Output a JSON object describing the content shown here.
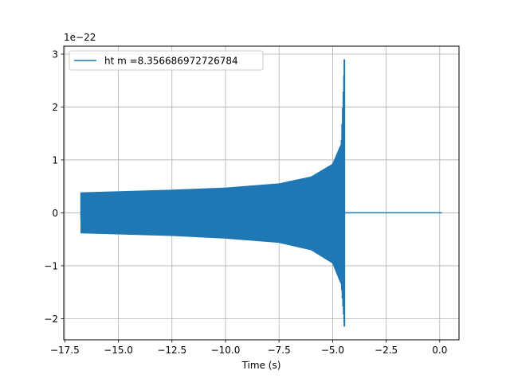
{
  "chart_data": {
    "type": "line",
    "title": "",
    "xlabel": "Time (s)",
    "ylabel": "",
    "y_offset_label": "1e−22",
    "xlim": [
      -17.55,
      0.9
    ],
    "ylim": [
      -2.4,
      3.15
    ],
    "x_ticks": [
      -17.5,
      -15.0,
      -12.5,
      -10.0,
      -7.5,
      -5.0,
      -2.5,
      0.0
    ],
    "x_tick_labels": [
      "−17.5",
      "−15.0",
      "−12.5",
      "−10.0",
      "−7.5",
      "−5.0",
      "−2.5",
      "0.0"
    ],
    "y_ticks": [
      -2,
      -1,
      0,
      1,
      2,
      3
    ],
    "y_tick_labels": [
      "−2",
      "−1",
      "0",
      "1",
      "2",
      "3"
    ],
    "grid": true,
    "legend_position": "top-left",
    "color": "#1f77b4",
    "series": [
      {
        "name": "ht m =8.356686972726784",
        "description_points": {
          "x_start": -16.75,
          "x_merger": -4.45,
          "x_end": 0.1,
          "upper_envelope": [
            [
              -16.75,
              0.38
            ],
            [
              -12.5,
              0.43
            ],
            [
              -10.0,
              0.47
            ],
            [
              -7.5,
              0.55
            ],
            [
              -6.0,
              0.68
            ],
            [
              -5.0,
              0.92
            ],
            [
              -4.6,
              1.3
            ],
            [
              -4.45,
              2.9
            ]
          ],
          "lower_envelope": [
            [
              -16.75,
              -0.38
            ],
            [
              -12.5,
              -0.43
            ],
            [
              -10.0,
              -0.48
            ],
            [
              -7.5,
              -0.56
            ],
            [
              -6.0,
              -0.7
            ],
            [
              -5.0,
              -0.95
            ],
            [
              -4.6,
              -1.35
            ],
            [
              -4.45,
              -2.15
            ]
          ],
          "post_merger_value": 0.0
        }
      }
    ]
  }
}
